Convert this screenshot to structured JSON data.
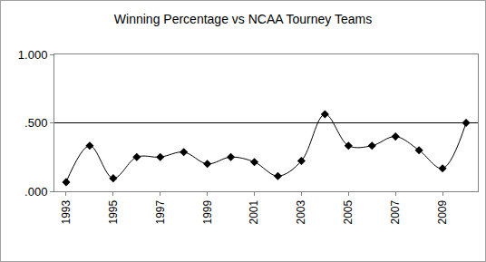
{
  "chart_data": {
    "type": "line",
    "title": "Winning Percentage vs NCAA Tourney Teams",
    "x": [
      1993,
      1994,
      1995,
      1996,
      1997,
      1998,
      1999,
      2000,
      2001,
      2002,
      2003,
      2004,
      2005,
      2006,
      2007,
      2008,
      2009,
      2010
    ],
    "values": [
      0.067,
      0.333,
      0.095,
      0.25,
      0.25,
      0.286,
      0.2,
      0.25,
      0.214,
      0.111,
      0.222,
      0.563,
      0.333,
      0.333,
      0.4,
      0.3,
      0.167,
      0.5
    ],
    "color": "#000000",
    "marker": "diamond",
    "line_style": "smooth",
    "xlim": [
      1992.5,
      2010.5
    ],
    "xticks": [
      1993,
      1995,
      1997,
      1999,
      2001,
      2003,
      2005,
      2007,
      2009
    ],
    "ylim": [
      0,
      1
    ],
    "yticks": [
      {
        "value": 0,
        "label": ".000"
      },
      {
        "value": 0.5,
        "label": ".500"
      },
      {
        "value": 1,
        "label": "1.000"
      }
    ],
    "grid": true
  }
}
